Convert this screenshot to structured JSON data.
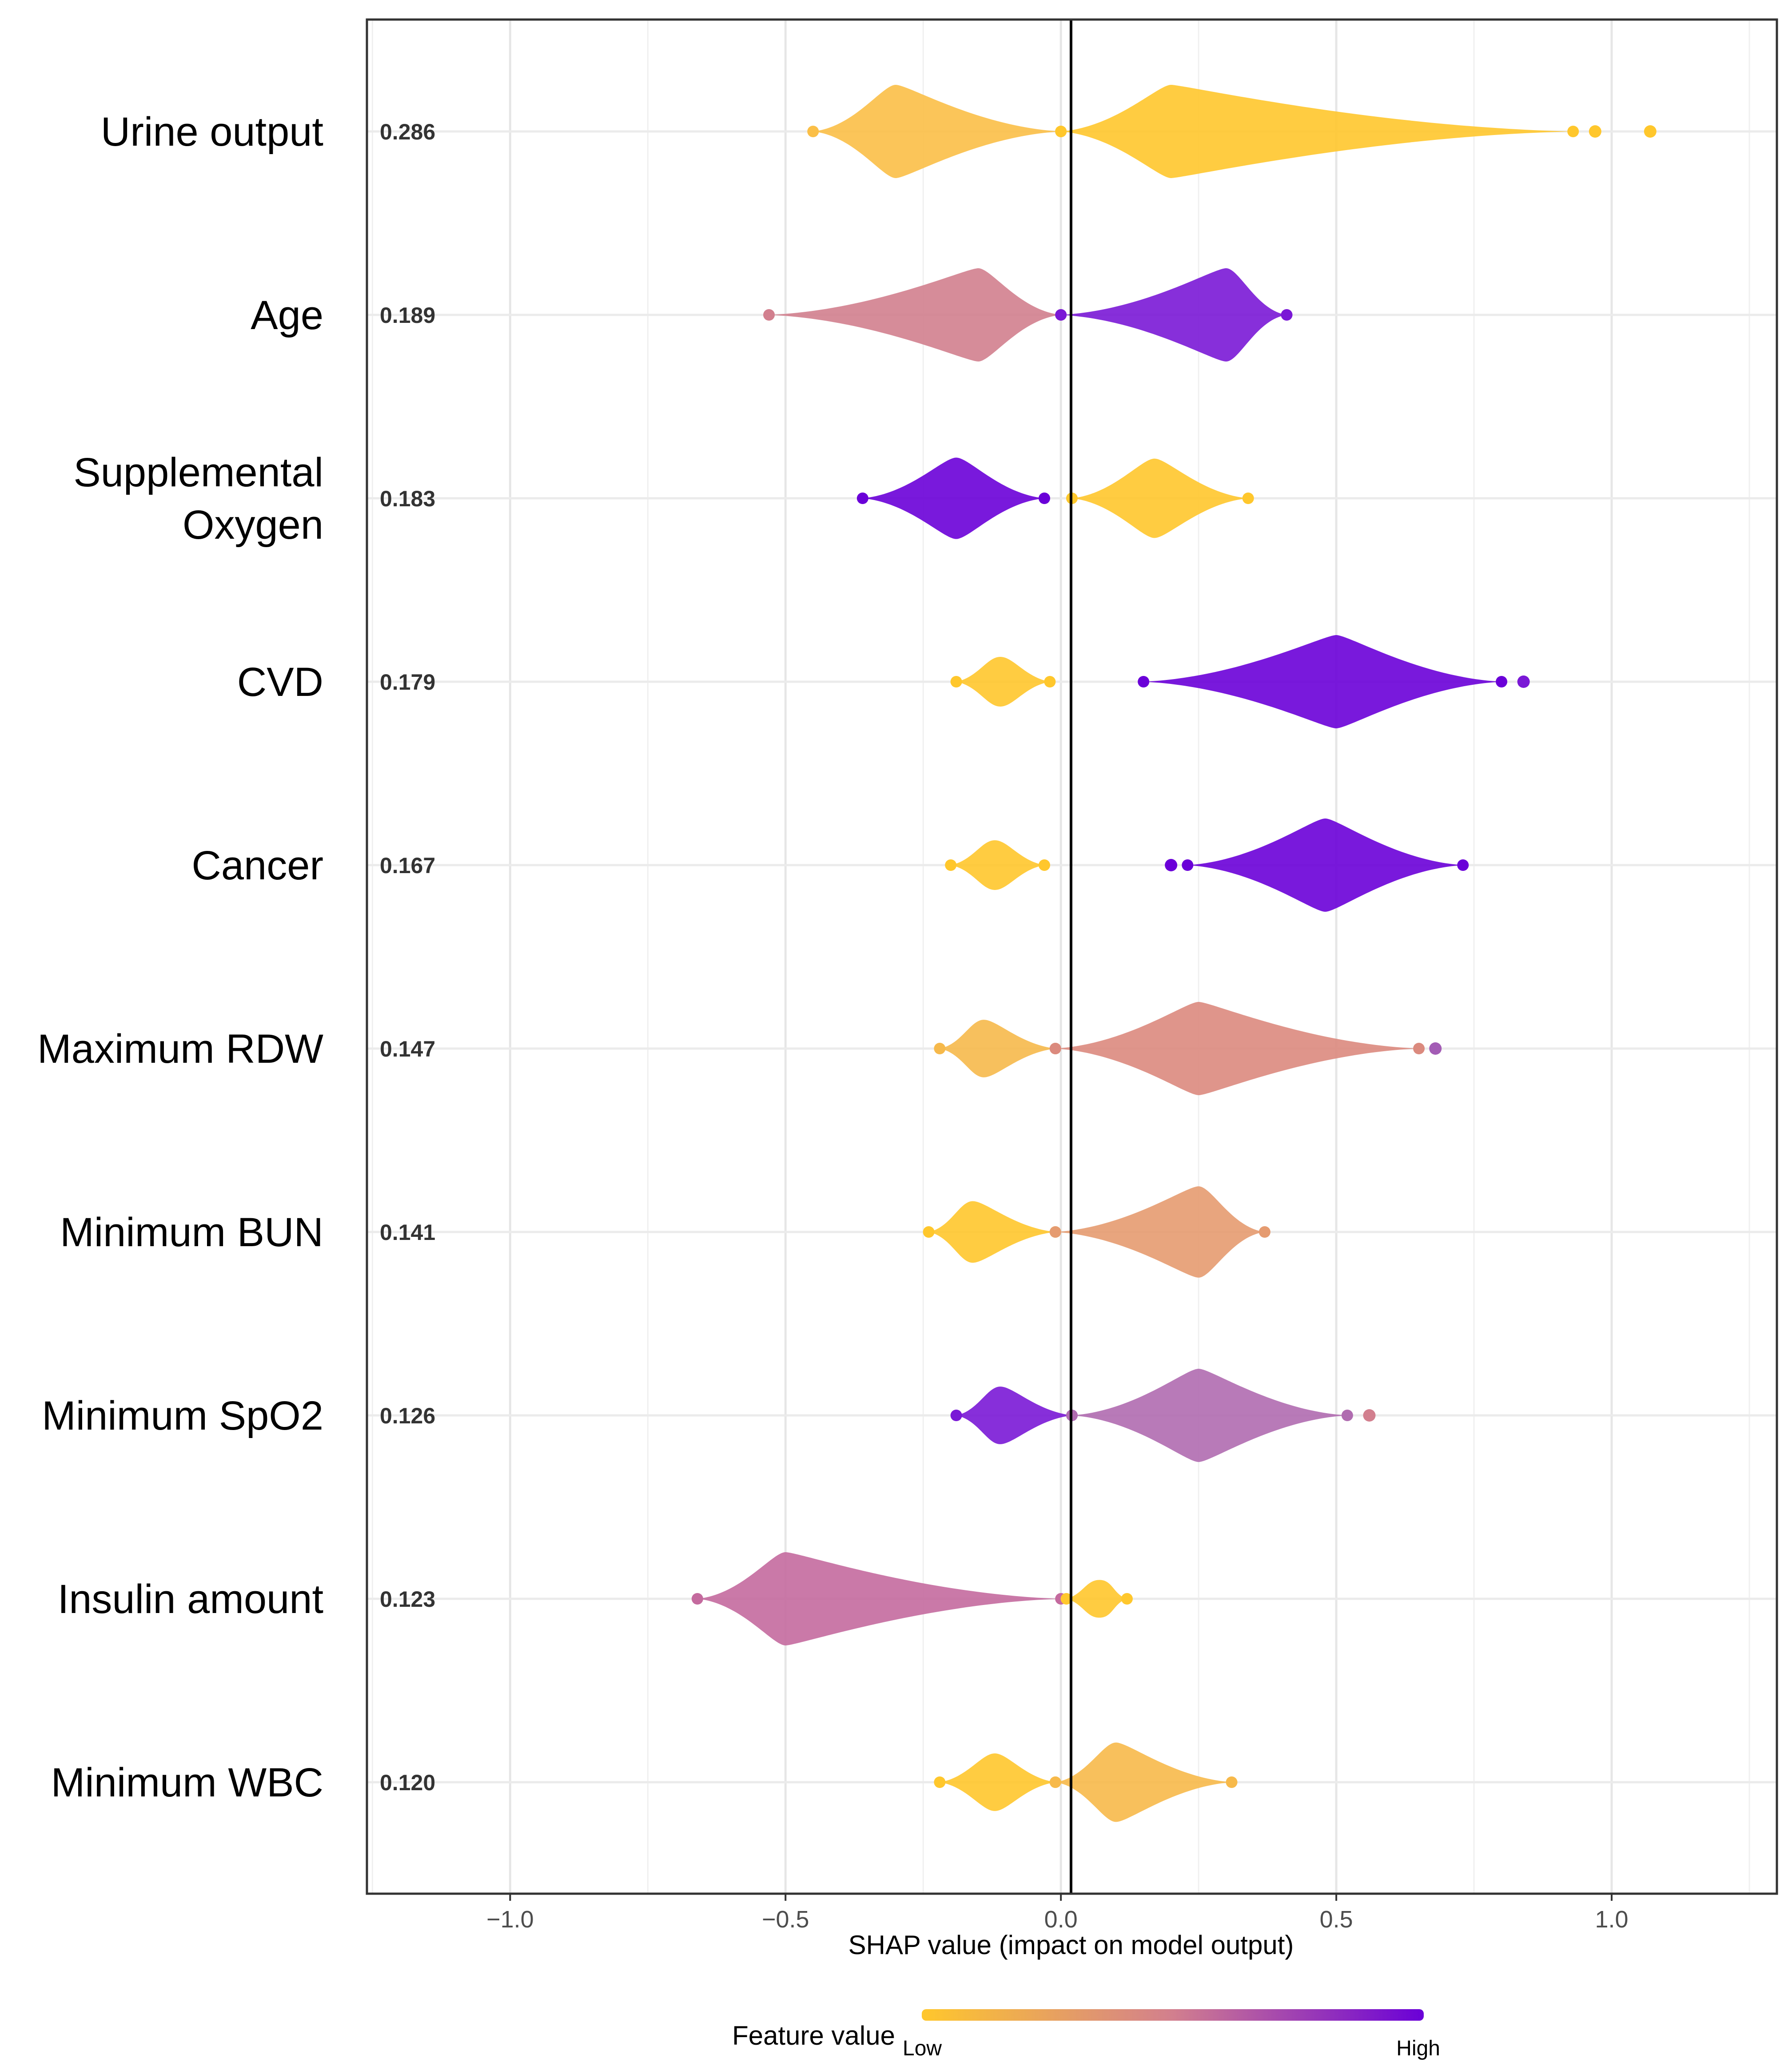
{
  "chart_data": {
    "type": "scatter",
    "subtype": "shap-summary-beeswarm",
    "xlabel": "SHAP value (impact on model output)",
    "xlim": [
      -1.26,
      1.3
    ],
    "xticks": [
      -1.0,
      -0.5,
      0.0,
      0.5,
      1.0
    ],
    "xtick_labels": [
      "−1.0",
      "−0.5",
      "0.0",
      "0.5",
      "1.0"
    ],
    "grid": true,
    "legend": {
      "title": "Feature value",
      "low_label": "Low",
      "high_label": "High",
      "placement": "bottom-center",
      "low_color": "#FFC72C",
      "high_color": "#6A00D8"
    },
    "features": [
      {
        "name": "Urine output",
        "mean_abs_shap": "0.286",
        "low_segment": {
          "min": -0.45,
          "max": 0.0,
          "peak": -0.3,
          "color": "#FBBF47"
        },
        "high_segment": {
          "min": 0.0,
          "max": 0.93,
          "peak": 0.2,
          "color": "#FFC72C"
        },
        "outliers": [
          {
            "x": 0.97,
            "color": "#FFC72C"
          },
          {
            "x": 1.07,
            "color": "#FFC72C"
          }
        ]
      },
      {
        "name": "Age",
        "mean_abs_shap": "0.189",
        "low_segment": {
          "min": -0.53,
          "max": 0.0,
          "peak": -0.15,
          "color": "#D27F8E"
        },
        "high_segment": {
          "min": 0.0,
          "max": 0.41,
          "peak": 0.3,
          "color": "#7A18D6"
        },
        "outliers": []
      },
      {
        "name": "Supplemental Oxygen",
        "mean_abs_shap": "0.183",
        "low_segment": {
          "min": -0.36,
          "max": -0.03,
          "peak": -0.19,
          "color": "#6A00D8"
        },
        "high_segment": {
          "min": 0.02,
          "max": 0.34,
          "peak": 0.17,
          "color": "#FFC72C"
        },
        "outliers": []
      },
      {
        "name": "CVD",
        "mean_abs_shap": "0.179",
        "low_segment": {
          "min": -0.19,
          "max": -0.02,
          "peak": -0.11,
          "color": "#FFC72C"
        },
        "high_segment": {
          "min": 0.15,
          "max": 0.8,
          "peak": 0.5,
          "color": "#6A00D8"
        },
        "outliers": [
          {
            "x": 0.84,
            "color": "#7A18D6"
          }
        ]
      },
      {
        "name": "Cancer",
        "mean_abs_shap": "0.167",
        "low_segment": {
          "min": -0.2,
          "max": -0.03,
          "peak": -0.12,
          "color": "#FFC72C"
        },
        "high_segment": {
          "min": 0.23,
          "max": 0.73,
          "peak": 0.48,
          "color": "#6A00D8"
        },
        "outliers": [
          {
            "x": 0.2,
            "color": "#6A00D8"
          }
        ]
      },
      {
        "name": "Maximum RDW",
        "mean_abs_shap": "0.147",
        "low_segment": {
          "min": -0.22,
          "max": -0.01,
          "peak": -0.14,
          "color": "#F6B94B"
        },
        "high_segment": {
          "min": -0.01,
          "max": 0.65,
          "peak": 0.25,
          "color": "#DB8A7E"
        },
        "outliers": [
          {
            "x": 0.68,
            "color": "#A35CB5"
          }
        ]
      },
      {
        "name": "Minimum BUN",
        "mean_abs_shap": "0.141",
        "low_segment": {
          "min": -0.24,
          "max": -0.01,
          "peak": -0.16,
          "color": "#FFC72C"
        },
        "high_segment": {
          "min": -0.01,
          "max": 0.37,
          "peak": 0.25,
          "color": "#E59B70"
        },
        "outliers": []
      },
      {
        "name": "Minimum SpO2",
        "mean_abs_shap": "0.126",
        "low_segment": {
          "min": -0.19,
          "max": 0.02,
          "peak": -0.11,
          "color": "#7A18D6"
        },
        "high_segment": {
          "min": 0.02,
          "max": 0.52,
          "peak": 0.25,
          "color": "#B06CB0"
        },
        "outliers": [
          {
            "x": 0.56,
            "color": "#D27F8E"
          }
        ]
      },
      {
        "name": "Insulin amount",
        "mean_abs_shap": "0.123",
        "low_segment": {
          "min": -0.66,
          "max": 0.0,
          "peak": -0.5,
          "color": "#C46A9E"
        },
        "high_segment": {
          "min": 0.01,
          "max": 0.12,
          "peak": 0.07,
          "color": "#FFC72C"
        },
        "outliers": []
      },
      {
        "name": "Minimum WBC",
        "mean_abs_shap": "0.120",
        "low_segment": {
          "min": -0.22,
          "max": -0.01,
          "peak": -0.12,
          "color": "#FFC72C"
        },
        "high_segment": {
          "min": -0.01,
          "max": 0.31,
          "peak": 0.1,
          "color": "#F7B94A"
        },
        "outliers": []
      }
    ]
  }
}
